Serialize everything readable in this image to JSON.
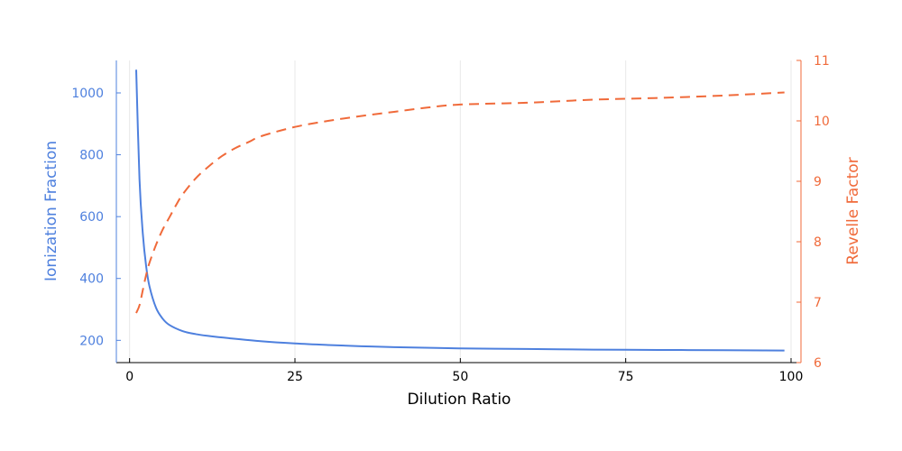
{
  "chart_data": {
    "type": "line",
    "title": "",
    "xlabel": "Dilution Ratio",
    "ylabel_left": "Ionization Fraction",
    "ylabel_right": "Revelle Factor",
    "xlim": [
      -2,
      101.5
    ],
    "ylim_left": [
      128,
      1105
    ],
    "ylim_right": [
      6,
      11
    ],
    "x_ticks": [
      0,
      25,
      50,
      75,
      100
    ],
    "y_left_ticks": [
      200,
      400,
      600,
      800,
      1000
    ],
    "y_right_ticks": [
      6,
      7,
      8,
      9,
      10,
      11
    ],
    "grid": true,
    "legend": "none",
    "colors": {
      "left": "#4e80de",
      "right": "#f06a3a",
      "axis": "#000000",
      "grid": "#e8e8e8"
    },
    "series": [
      {
        "axis": "left",
        "style": "solid",
        "x": [
          1,
          1.5,
          2,
          2.5,
          3,
          4,
          5,
          6,
          8,
          10,
          12,
          15,
          20,
          25,
          30,
          35,
          40,
          50,
          60,
          70,
          80,
          90,
          99
        ],
        "values": [
          1075,
          720,
          545,
          440,
          375,
          305,
          270,
          250,
          230,
          220,
          214,
          207,
          197,
          190,
          185,
          181,
          178,
          174,
          172,
          170,
          169,
          168,
          167
        ]
      },
      {
        "axis": "right",
        "style": "dashed",
        "x": [
          1,
          1.5,
          2,
          2.5,
          3,
          4,
          5,
          6,
          7,
          8,
          10,
          12,
          14,
          16,
          18,
          20,
          25,
          30,
          35,
          40,
          45,
          50,
          60,
          70,
          80,
          90,
          99
        ],
        "values": [
          6.82,
          6.95,
          7.2,
          7.45,
          7.65,
          7.95,
          8.2,
          8.4,
          8.6,
          8.78,
          9.05,
          9.25,
          9.42,
          9.55,
          9.65,
          9.75,
          9.9,
          10.0,
          10.08,
          10.15,
          10.22,
          10.27,
          10.3,
          10.35,
          10.38,
          10.42,
          10.47
        ]
      }
    ]
  }
}
